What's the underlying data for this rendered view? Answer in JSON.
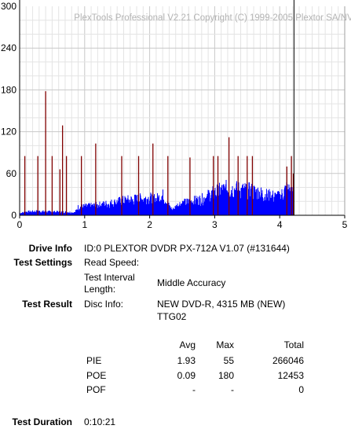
{
  "chart_data": {
    "type": "bar",
    "title": "PlexTools Professional V2.21 Copyright (C) 1999-2005 Plextor SA/NV",
    "xlabel": "",
    "ylabel": "",
    "xlim": [
      0,
      5
    ],
    "ylim": [
      0,
      300
    ],
    "x_ticks": [
      "0",
      "1",
      "2",
      "3",
      "4",
      "5"
    ],
    "y_ticks": [
      "0",
      "60",
      "120",
      "180",
      "240",
      "300"
    ],
    "grid": true,
    "series": [
      {
        "values_description_note": "",
        "color": "#0000ff",
        "profile": [
          [
            0.0,
            3
          ],
          [
            0.1,
            5
          ],
          [
            0.3,
            6
          ],
          [
            0.5,
            5
          ],
          [
            0.7,
            5
          ],
          [
            0.85,
            4
          ],
          [
            0.9,
            12
          ],
          [
            1.0,
            13
          ],
          [
            1.2,
            15
          ],
          [
            1.4,
            18
          ],
          [
            1.6,
            22
          ],
          [
            1.8,
            24
          ],
          [
            2.0,
            26
          ],
          [
            2.1,
            24
          ],
          [
            2.2,
            30
          ],
          [
            2.3,
            14
          ],
          [
            2.35,
            8
          ],
          [
            2.45,
            17
          ],
          [
            2.6,
            20
          ],
          [
            2.8,
            24
          ],
          [
            3.0,
            34
          ],
          [
            3.2,
            40
          ],
          [
            3.4,
            38
          ],
          [
            3.6,
            36
          ],
          [
            3.8,
            30
          ],
          [
            4.0,
            27
          ],
          [
            4.1,
            40
          ],
          [
            4.22,
            33
          ]
        ]
      },
      {
        "color": "#800000",
        "spikes": [
          [
            0.08,
            85
          ],
          [
            0.28,
            85
          ],
          [
            0.4,
            178
          ],
          [
            0.5,
            85
          ],
          [
            0.62,
            66
          ],
          [
            0.66,
            129
          ],
          [
            0.72,
            85
          ],
          [
            0.95,
            85
          ],
          [
            1.17,
            103
          ],
          [
            1.57,
            85
          ],
          [
            1.83,
            85
          ],
          [
            2.05,
            103
          ],
          [
            2.28,
            85
          ],
          [
            2.62,
            83
          ],
          [
            2.98,
            85
          ],
          [
            3.05,
            85
          ],
          [
            3.22,
            112
          ],
          [
            3.36,
            85
          ],
          [
            3.5,
            85
          ],
          [
            3.58,
            85
          ],
          [
            4.11,
            70
          ],
          [
            4.18,
            85
          ],
          [
            4.21,
            60
          ]
        ]
      }
    ],
    "cursor_x": 4.22
  },
  "info": {
    "drive_info_label": "Drive Info",
    "drive_info_value": "ID:0 PLEXTOR DVDR PX-712A V1.07 (#131644)",
    "test_settings_label": "Test Settings",
    "read_speed_label": "Read Speed:",
    "interval_label_1": "Test Interval",
    "interval_label_2": "Length:",
    "interval_value": "Middle Accuracy",
    "test_result_label": "Test Result",
    "disc_info_label": "Disc Info:",
    "disc_info_value_1": "NEW DVD-R, 4315 MB (NEW)",
    "disc_info_value_2": "TTG02",
    "test_duration_label": "Test Duration",
    "test_duration_value": "0:10:21"
  },
  "results": {
    "headers": [
      "Avg",
      "Max",
      "Total"
    ],
    "rows": [
      {
        "name": "PIE",
        "avg": "1.93",
        "max": "55",
        "total": "266046"
      },
      {
        "name": "POE",
        "avg": "0.09",
        "max": "180",
        "total": "12453"
      },
      {
        "name": "POF",
        "avg": "-",
        "max": "-",
        "total": "0"
      }
    ]
  }
}
